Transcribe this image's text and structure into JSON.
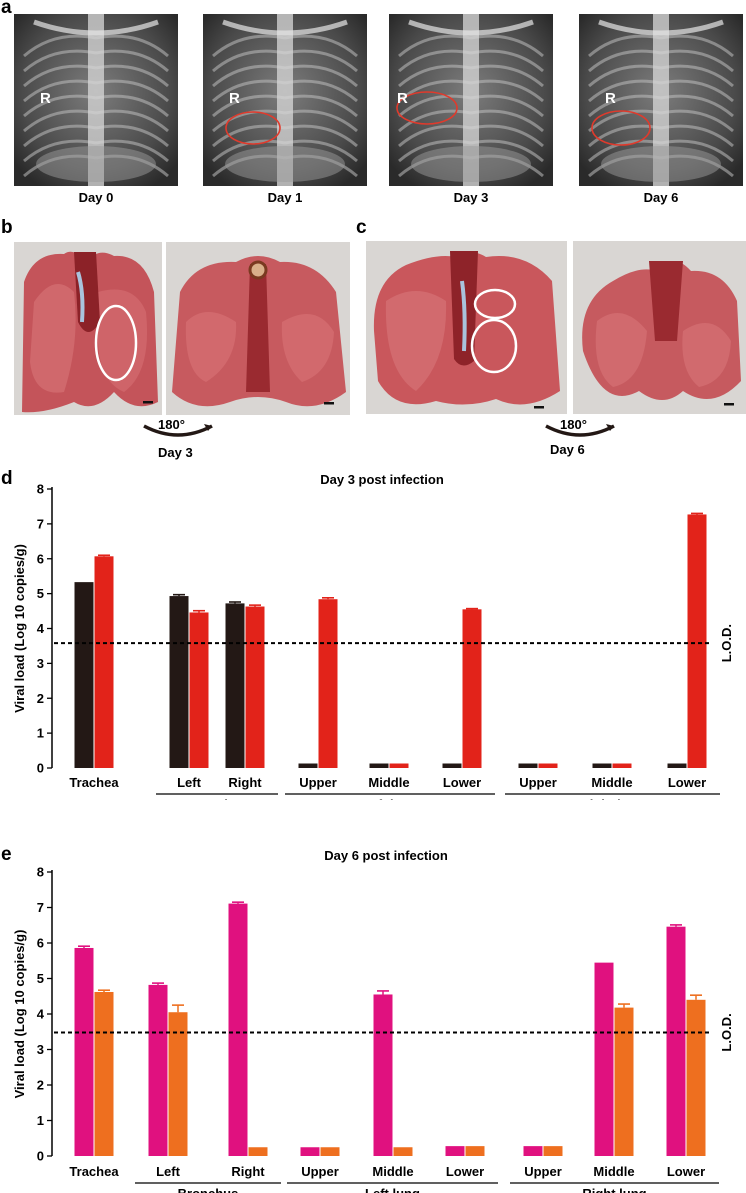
{
  "panel_a": {
    "letter": "a",
    "images": [
      {
        "caption": "Day 0",
        "marker": "R",
        "lesion_circled": false
      },
      {
        "caption": "Day 1",
        "marker": "R",
        "lesion_circled": true
      },
      {
        "caption": "Day 3",
        "marker": "R",
        "lesion_circled": true
      },
      {
        "caption": "Day 6",
        "marker": "R",
        "lesion_circled": true
      }
    ]
  },
  "panel_b": {
    "letter": "b",
    "rotation_label": "180°",
    "day_label": "Day 3"
  },
  "panel_c": {
    "letter": "c",
    "rotation_label": "180°",
    "day_label": "Day 6"
  },
  "colors": {
    "day3_series1": "#231815",
    "day3_series2": "#e2231a",
    "day6_series1": "#e0117f",
    "day6_series2": "#ee6f1f",
    "lesion_circle_xray": "#e03a2c",
    "lesion_circle_photo": "#ffffff"
  },
  "chart_data": [
    {
      "panel_letter": "d",
      "type": "bar",
      "title": "Day 3 post infection",
      "ylabel": "Viral load (Log 10 copies/g)",
      "ylim": [
        0,
        8
      ],
      "yticks": [
        "0",
        "1",
        "2",
        "3",
        "4",
        "5",
        "6",
        "7",
        "8"
      ],
      "categories": [
        "Trachea",
        "Left",
        "Right",
        "Upper",
        "Middle",
        "Lower",
        "Upper",
        "Middle",
        "Lower"
      ],
      "groups": [
        {
          "label": "Bronchus",
          "from": 1,
          "to": 2
        },
        {
          "label": "Left lung",
          "from": 3,
          "to": 5
        },
        {
          "label": "Right lung",
          "from": 6,
          "to": 8
        }
      ],
      "series": [
        {
          "values": [
            5.3,
            4.93,
            4.72,
            0.1,
            0.1,
            0.1,
            0.1,
            0.1,
            0.1
          ],
          "errors": [
            0.0,
            0.04,
            0.04,
            0.0,
            0.0,
            0.0,
            0.0,
            0.0,
            0.0
          ]
        },
        {
          "values": [
            6.07,
            4.46,
            4.63,
            4.84,
            0.1,
            4.55,
            0.1,
            0.1,
            7.27
          ],
          "errors": [
            0.03,
            0.05,
            0.04,
            0.04,
            0.0,
            0.02,
            0.0,
            0.0,
            0.03
          ]
        }
      ],
      "lod": {
        "value": 3.58,
        "label": "L.O.D."
      }
    },
    {
      "panel_letter": "e",
      "type": "bar",
      "title": "Day 6 post infection",
      "ylabel": "Viral load (Log 10 copies/g)",
      "ylim": [
        0,
        8
      ],
      "yticks": [
        "0",
        "1",
        "2",
        "3",
        "4",
        "5",
        "6",
        "7",
        "8"
      ],
      "categories": [
        "Trachea",
        "Left",
        "Right",
        "Upper",
        "Middle",
        "Lower",
        "Upper",
        "Middle",
        "Lower"
      ],
      "groups": [
        {
          "label": "Bronchus",
          "from": 1,
          "to": 2
        },
        {
          "label": "Left lung",
          "from": 3,
          "to": 5
        },
        {
          "label": "Right lung",
          "from": 6,
          "to": 8
        }
      ],
      "series": [
        {
          "values": [
            5.86,
            4.82,
            7.11,
            0.22,
            4.55,
            0.25,
            0.25,
            5.42,
            6.46
          ],
          "errors": [
            0.05,
            0.05,
            0.04,
            0.0,
            0.1,
            0.0,
            0.0,
            0.0,
            0.05
          ]
        },
        {
          "values": [
            4.62,
            4.05,
            0.22,
            0.22,
            0.22,
            0.25,
            0.25,
            4.18,
            4.4
          ],
          "errors": [
            0.05,
            0.2,
            0.0,
            0.0,
            0.0,
            0.0,
            0.0,
            0.1,
            0.13
          ]
        }
      ],
      "lod": {
        "value": 3.48,
        "label": "L.O.D."
      }
    }
  ]
}
